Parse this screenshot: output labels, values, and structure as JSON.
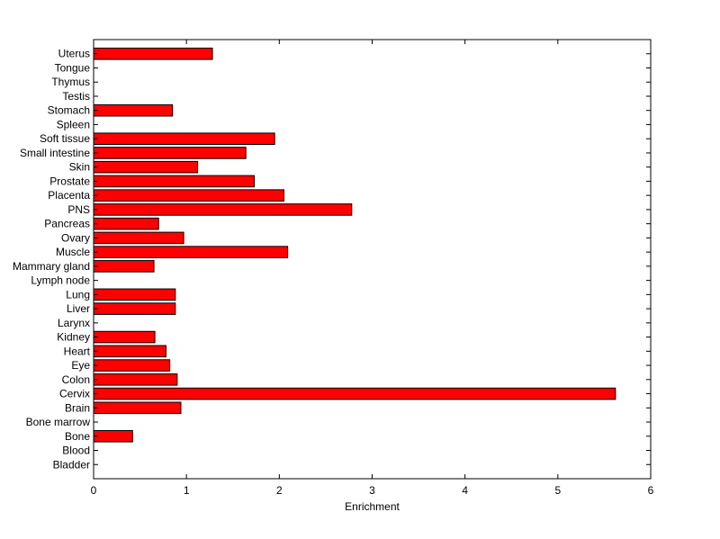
{
  "chart_data": {
    "type": "bar",
    "orientation": "horizontal",
    "title": "",
    "xlabel": "Enrichment",
    "ylabel": "",
    "xlim": [
      0,
      6
    ],
    "xticks": [
      "0",
      "1",
      "2",
      "3",
      "4",
      "5",
      "6"
    ],
    "grid": false,
    "legend": "none",
    "bar_color": "#ff0000",
    "bar_edge_color": "#000000",
    "categories": [
      "Bladder",
      "Blood",
      "Bone",
      "Bone marrow",
      "Brain",
      "Cervix",
      "Colon",
      "Eye",
      "Heart",
      "Kidney",
      "Larynx",
      "Liver",
      "Lung",
      "Lymph node",
      "Mammary gland",
      "Muscle",
      "Ovary",
      "Pancreas",
      "PNS",
      "Placenta",
      "Prostate",
      "Skin",
      "Small intestine",
      "Soft tissue",
      "Spleen",
      "Stomach",
      "Testis",
      "Thymus",
      "Tongue",
      "Uterus"
    ],
    "values": [
      0,
      0,
      0.42,
      0,
      0.94,
      5.62,
      0.9,
      0.82,
      0.78,
      0.66,
      0,
      0.88,
      0.88,
      0,
      0.65,
      2.09,
      0.97,
      0.7,
      2.78,
      2.05,
      1.73,
      1.12,
      1.64,
      1.95,
      0,
      0.85,
      0,
      0,
      0,
      1.28
    ]
  }
}
